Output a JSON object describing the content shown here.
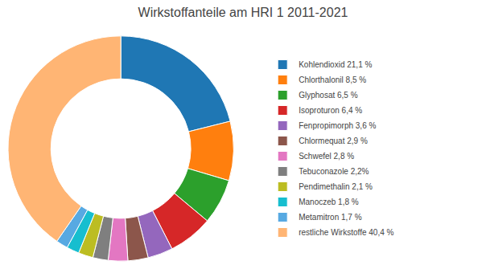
{
  "chart_data": {
    "type": "pie",
    "title": "Wirkstoffanteile am HRI 1 2011-2021",
    "categories": [
      "Kohlendioxid 21,1 %",
      "Chlorthalonil 8,5 %",
      "Glyphosat 6,5 %",
      "Isoproturon 6,4 %",
      "Fenpropimorph 3,6 %",
      "Chlormequat 2,9 %",
      "Schwefel 2,8 %",
      "Tebuconazole 2,2%",
      "Pendimethalin 2,1 %",
      "Manoczeb 1,8 %",
      "Metamitron 1,7 %",
      "restliche Wirkstoffe 40,4 %"
    ],
    "values": [
      21.1,
      8.5,
      6.5,
      6.4,
      3.6,
      2.9,
      2.8,
      2.2,
      2.1,
      1.8,
      1.7,
      40.4
    ],
    "legend": "right"
  }
}
